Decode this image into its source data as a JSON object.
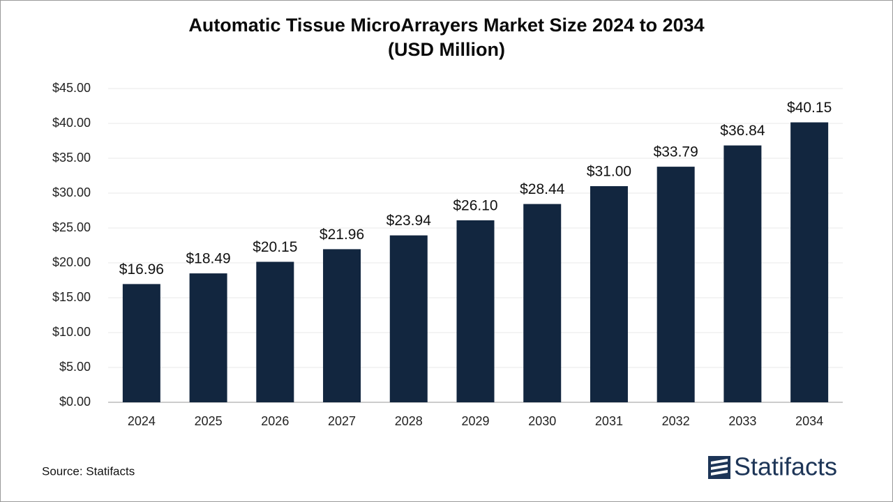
{
  "chart_data": {
    "type": "bar",
    "title": "Automatic Tissue MicroArrayers Market Size 2024 to 2034",
    "subtitle": "(USD Million)",
    "categories": [
      "2024",
      "2025",
      "2026",
      "2027",
      "2028",
      "2029",
      "2030",
      "2031",
      "2032",
      "2033",
      "2034"
    ],
    "values": [
      16.96,
      18.49,
      20.15,
      21.96,
      23.94,
      26.1,
      28.44,
      31.0,
      33.79,
      36.84,
      40.15
    ],
    "value_labels": [
      "$16.96",
      "$18.49",
      "$20.15",
      "$21.96",
      "$23.94",
      "$26.10",
      "$28.44",
      "$31.00",
      "$33.79",
      "$36.84",
      "$40.15"
    ],
    "color": "#12263f",
    "ylim": [
      0,
      45
    ],
    "yticks": [
      {
        "value": 0,
        "label": "$0.00"
      },
      {
        "value": 5,
        "label": "$5.00"
      },
      {
        "value": 10,
        "label": "$10.00"
      },
      {
        "value": 15,
        "label": "$15.00"
      },
      {
        "value": 20,
        "label": "$20.00"
      },
      {
        "value": 25,
        "label": "$25.00"
      },
      {
        "value": 30,
        "label": "$30.00"
      },
      {
        "value": 35,
        "label": "$35.00"
      },
      {
        "value": 40,
        "label": "$40.00"
      },
      {
        "value": 45,
        "label": "$45.00"
      }
    ],
    "grid": true
  },
  "source": "Source: Statifacts",
  "logo": "Statifacts"
}
